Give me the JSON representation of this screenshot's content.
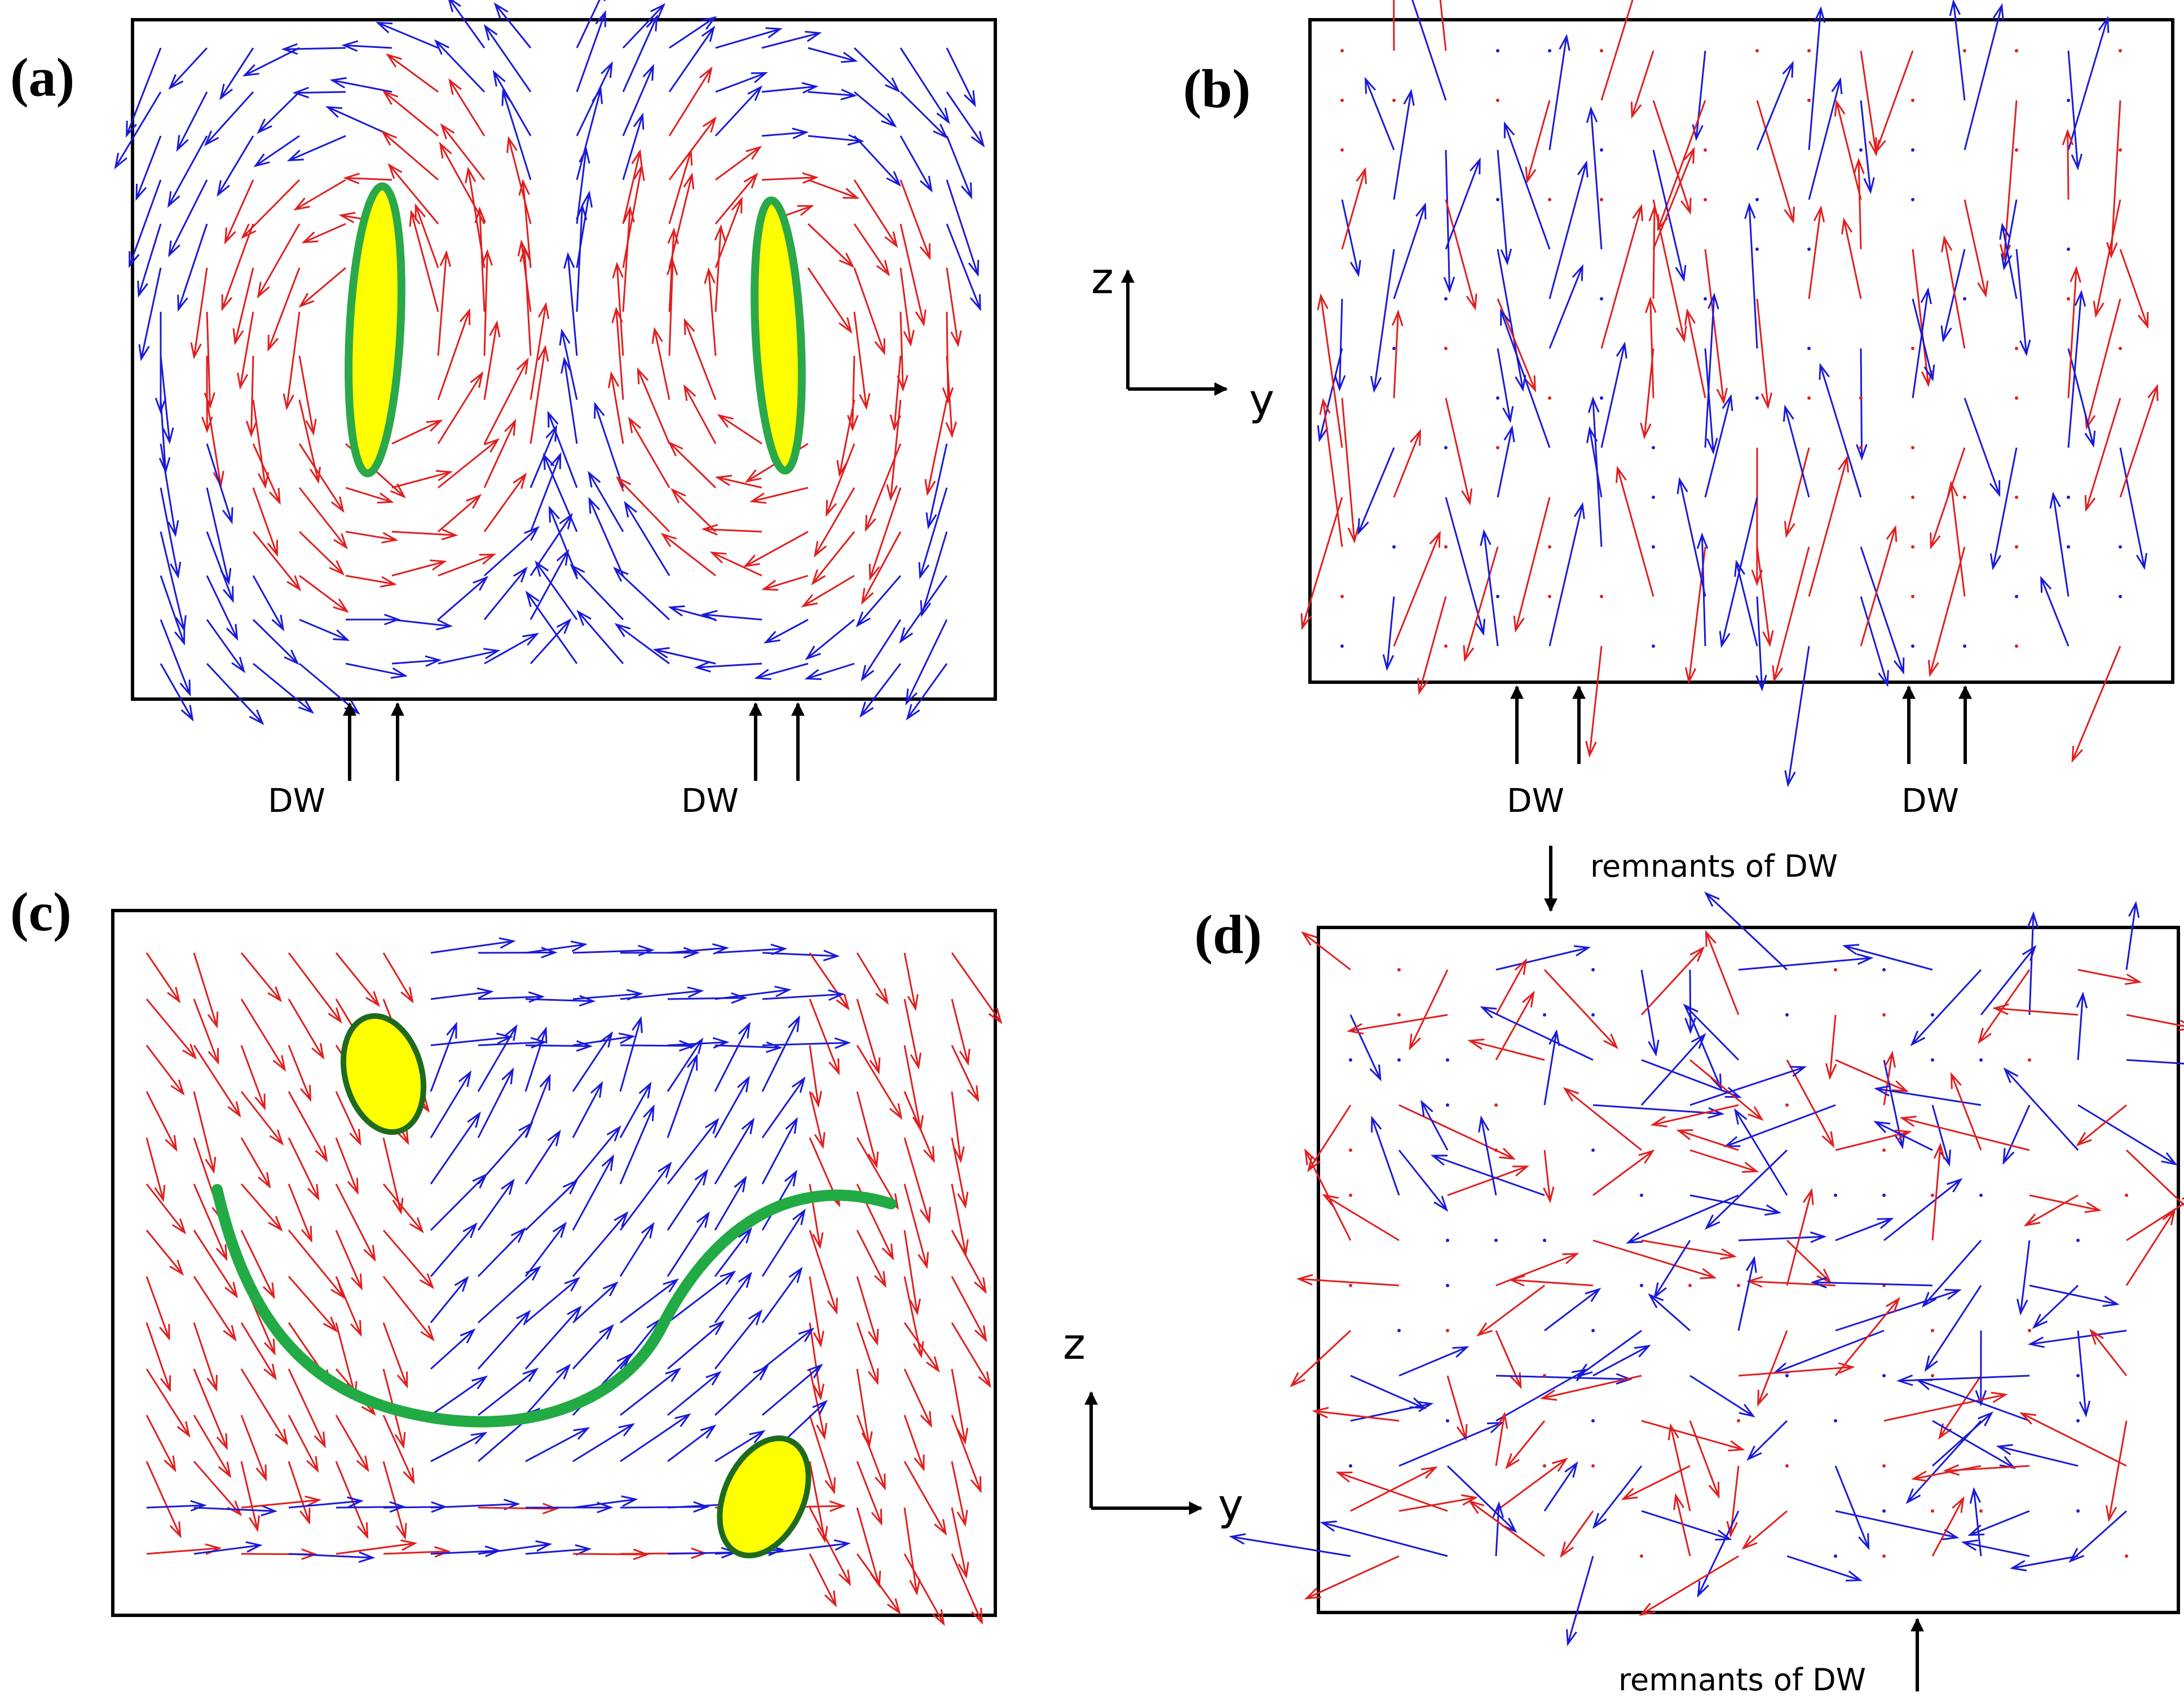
{
  "panels": [
    {
      "id": "a",
      "label": "(a)"
    },
    {
      "id": "b",
      "label": "(b)"
    },
    {
      "id": "c",
      "label": "(c)"
    },
    {
      "id": "d",
      "label": "(d)"
    }
  ],
  "axes": {
    "z_label": "z",
    "y_label": "y"
  },
  "annotations": {
    "dw": "DW",
    "remnants": "remnants of DW"
  },
  "colors": {
    "vector_blue": "#1a1ad8",
    "vector_red": "#e02020",
    "domain_fill": "#ffff00",
    "domain_outline_light": "#2aa84a",
    "domain_outline_dark": "#1e6b1e",
    "frame": "#000000"
  }
}
